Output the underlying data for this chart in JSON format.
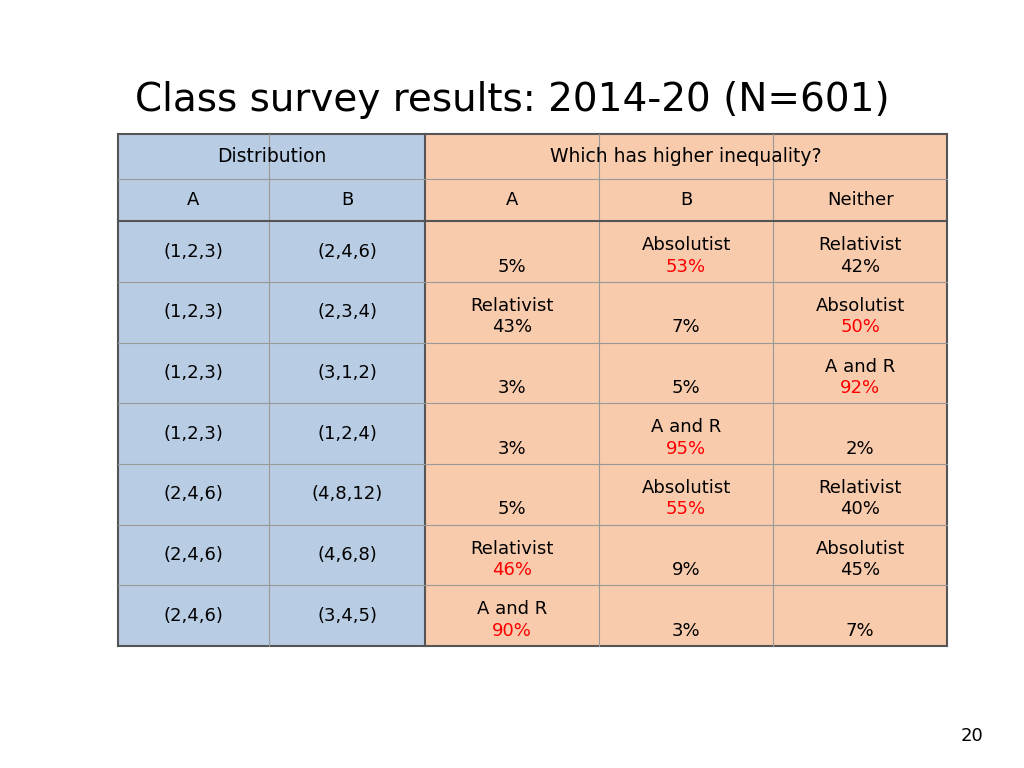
{
  "title": "Class survey results: 2014-20 (N=601)",
  "title_fontsize": 28,
  "page_number": "20",
  "col_bg_left": "#b8cce4",
  "col_bg_right": "#f8cbad",
  "rows": [
    {
      "distA": "(1,2,3)",
      "distB": "(2,4,6)",
      "label_A": "",
      "label_B": "Absolutist",
      "label_N": "Relativist",
      "pct_A": "5%",
      "pct_B": "53%",
      "pct_N": "42%",
      "red_col": "B"
    },
    {
      "distA": "(1,2,3)",
      "distB": "(2,3,4)",
      "label_A": "Relativist",
      "label_B": "",
      "label_N": "Absolutist",
      "pct_A": "43%",
      "pct_B": "7%",
      "pct_N": "50%",
      "red_col": "N"
    },
    {
      "distA": "(1,2,3)",
      "distB": "(3,1,2)",
      "label_A": "",
      "label_B": "",
      "label_N": "A and R",
      "pct_A": "3%",
      "pct_B": "5%",
      "pct_N": "92%",
      "red_col": "N"
    },
    {
      "distA": "(1,2,3)",
      "distB": "(1,2,4)",
      "label_A": "",
      "label_B": "A and R",
      "label_N": "",
      "pct_A": "3%",
      "pct_B": "95%",
      "pct_N": "2%",
      "red_col": "B"
    },
    {
      "distA": "(2,4,6)",
      "distB": "(4,8,12)",
      "label_A": "",
      "label_B": "Absolutist",
      "label_N": "Relativist",
      "pct_A": "5%",
      "pct_B": "55%",
      "pct_N": "40%",
      "red_col": "B"
    },
    {
      "distA": "(2,4,6)",
      "distB": "(4,6,8)",
      "label_A": "Relativist",
      "label_B": "",
      "label_N": "Absolutist",
      "pct_A": "46%",
      "pct_B": "9%",
      "pct_N": "45%",
      "red_col": "A"
    },
    {
      "distA": "(2,4,6)",
      "distB": "(3,4,5)",
      "label_A": "A and R",
      "label_B": "",
      "label_N": "",
      "pct_A": "90%",
      "pct_B": "3%",
      "pct_N": "7%",
      "red_col": "A"
    }
  ]
}
